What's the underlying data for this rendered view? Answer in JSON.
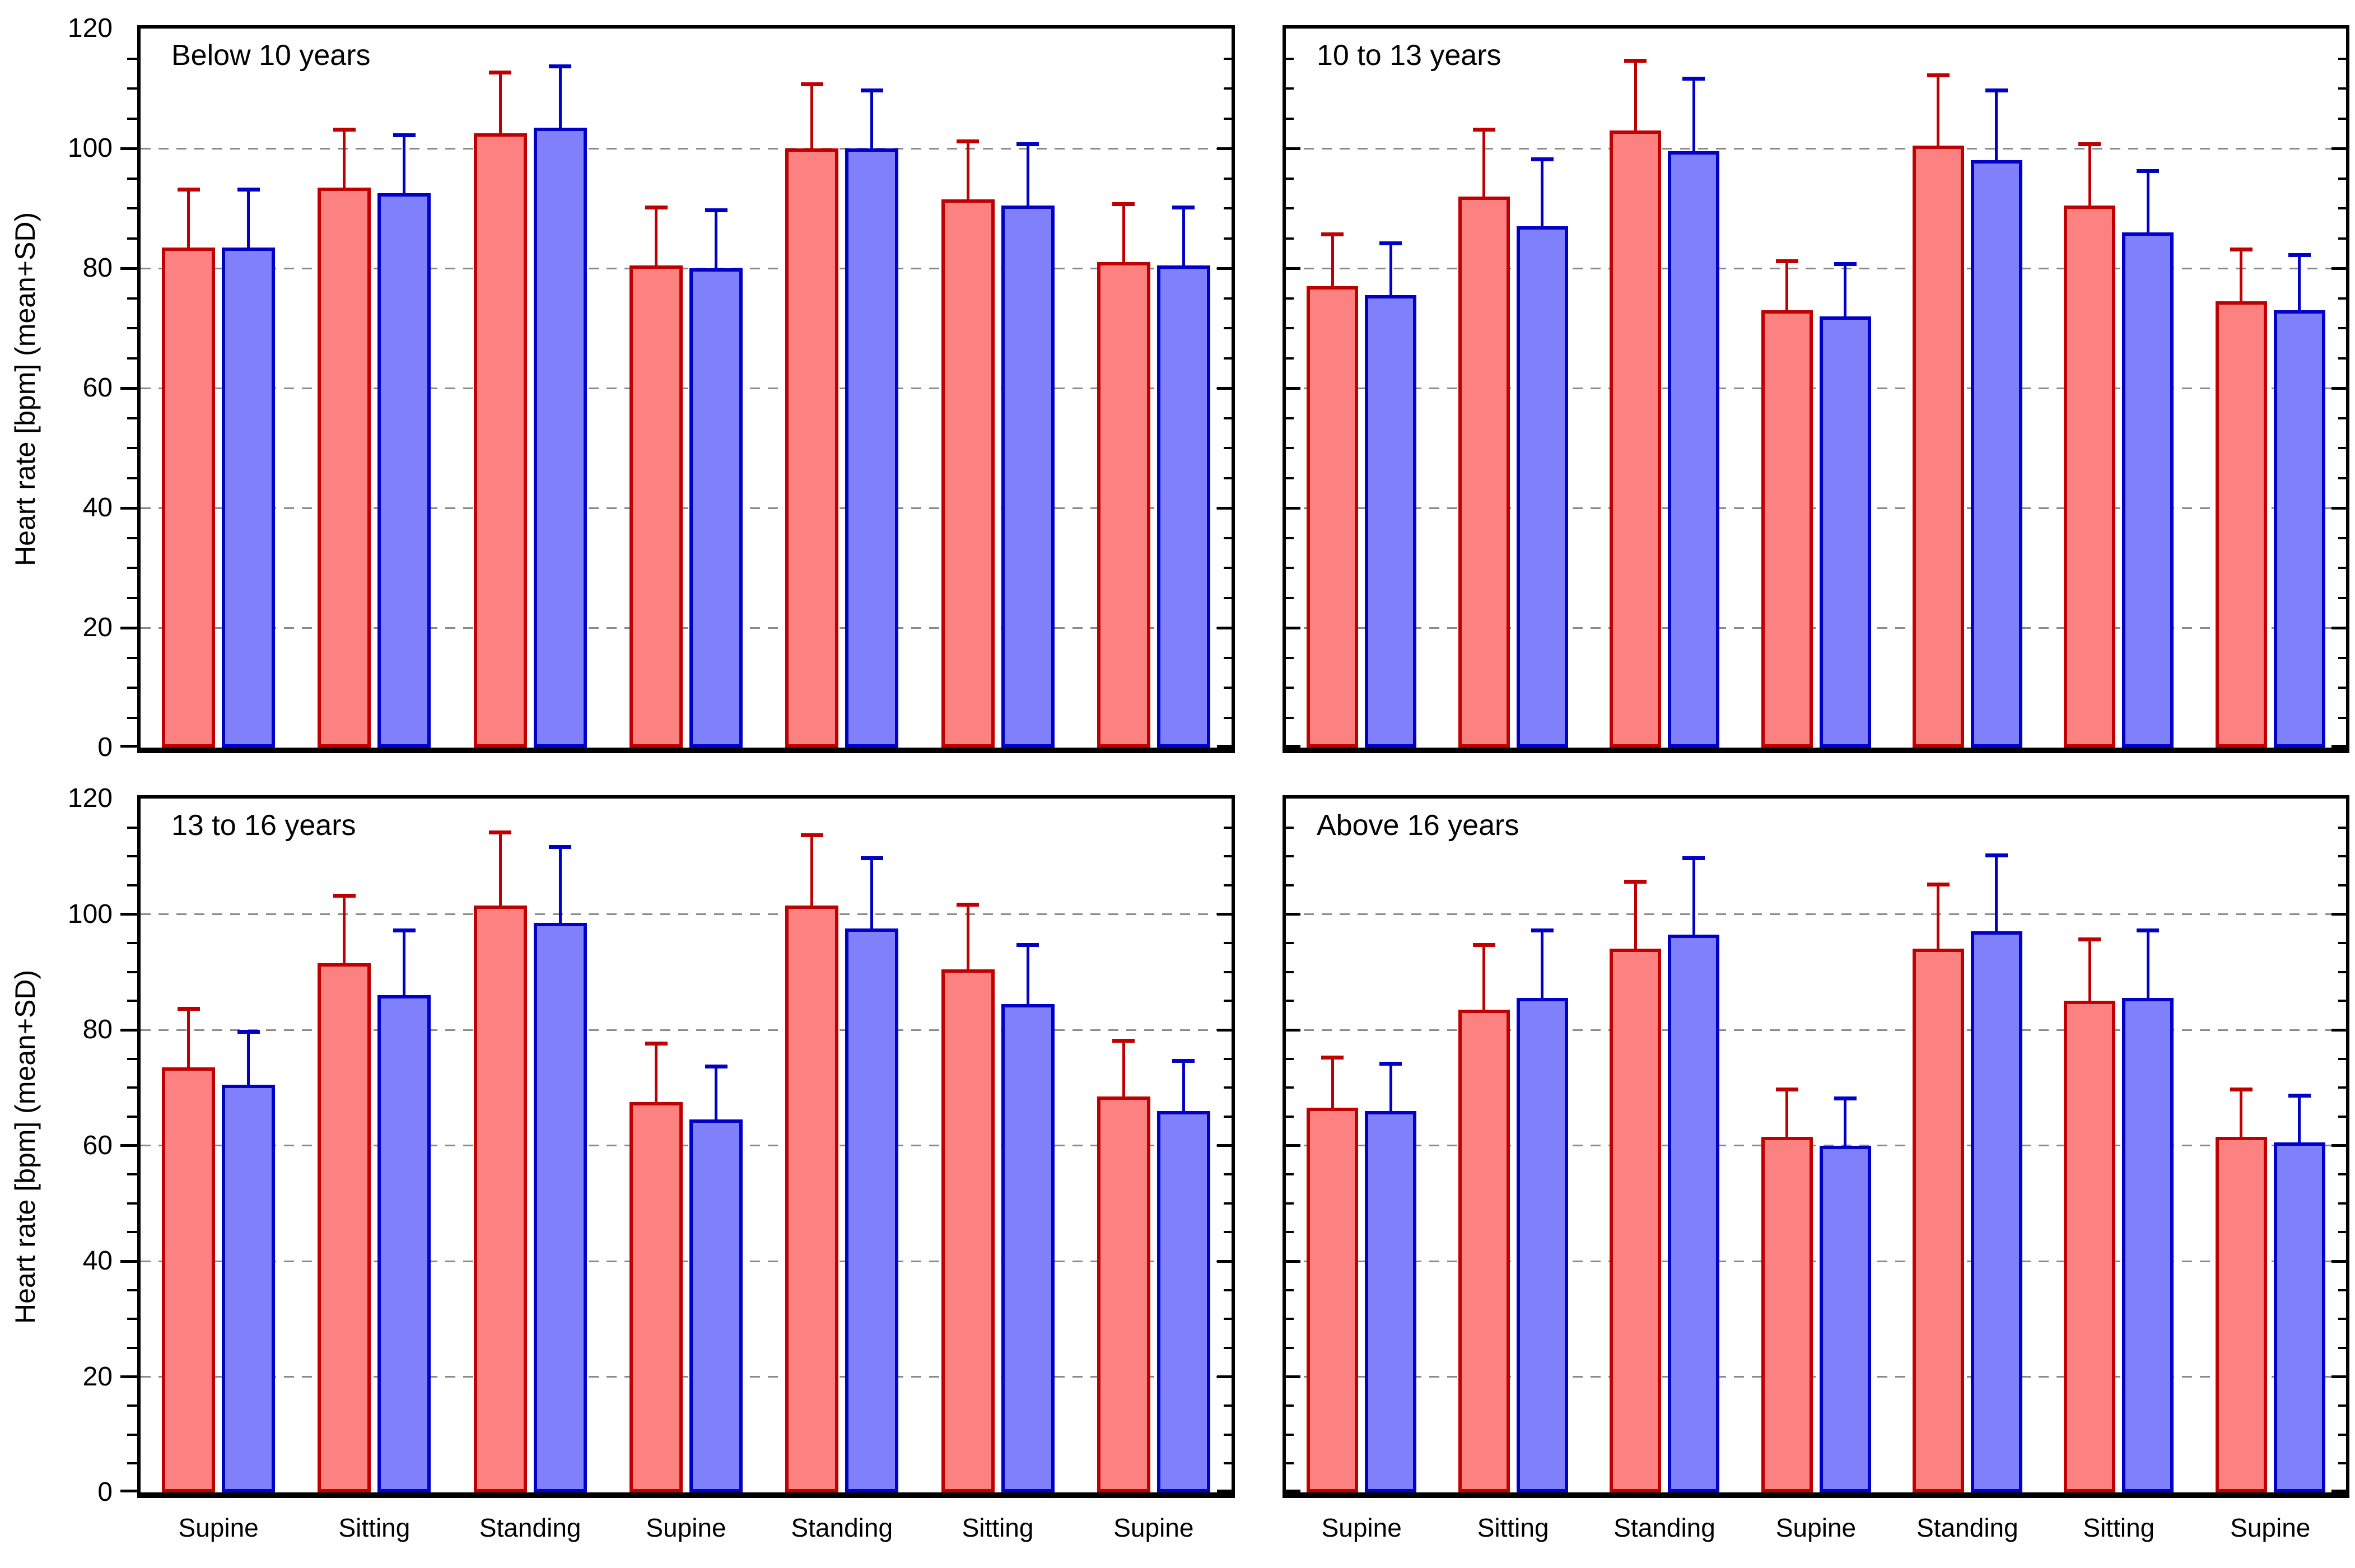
{
  "figure": {
    "ylabel": "Heart rate [bpm] (mean+SD)",
    "ytick_labels": [
      "0",
      "20",
      "40",
      "60",
      "80",
      "100",
      "120"
    ],
    "background": "#FFFFFF",
    "colors": {
      "red_fill": "#FC8181",
      "red_edge": "#C00000",
      "blue_fill": "#8080FA",
      "blue_edge": "#0000C8",
      "gridline": "#8A8A8A",
      "axis": "#000000",
      "text": "#000000"
    }
  },
  "chart_data": [
    {
      "type": "bar",
      "title": "Below 10 years",
      "panel_position": "top-left",
      "categories": [
        "Supine",
        "Sitting",
        "Standing",
        "Supine",
        "Standing",
        "Sitting",
        "Supine"
      ],
      "series": [
        {
          "name": "red",
          "fill": "#FC8181",
          "edge": "#C00000",
          "means": [
            83.5,
            93.5,
            102.5,
            80.5,
            100,
            91.5,
            81
          ],
          "sd": [
            10,
            10,
            10.5,
            10,
            11,
            10,
            10
          ]
        },
        {
          "name": "blue",
          "fill": "#8080FA",
          "edge": "#0000C8",
          "means": [
            83.5,
            92.5,
            103.5,
            80,
            100,
            90.5,
            80.5
          ],
          "sd": [
            10,
            10,
            10.5,
            10,
            10,
            10.5,
            10
          ]
        }
      ],
      "ylabel": "Heart rate [bpm] (mean+SD)",
      "ylim": [
        0,
        120
      ],
      "ytick_major_step": 20,
      "ytick_minor_step": 5,
      "grid_values": [
        20,
        40,
        60,
        80,
        100
      ],
      "grid_style": "dashed",
      "legend": "none",
      "show_y_tick_labels": true,
      "show_x_tick_labels": false
    },
    {
      "type": "bar",
      "title": "10 to 13 years",
      "panel_position": "top-right",
      "categories": [
        "Supine",
        "Sitting",
        "Standing",
        "Supine",
        "Standing",
        "Sitting",
        "Supine"
      ],
      "series": [
        {
          "name": "red",
          "fill": "#FC8181",
          "edge": "#C00000",
          "means": [
            77,
            92,
            103,
            73,
            100.5,
            90.5,
            74.5
          ],
          "sd": [
            9,
            11.5,
            12,
            8.5,
            12,
            10.5,
            9
          ]
        },
        {
          "name": "blue",
          "fill": "#8080FA",
          "edge": "#0000C8",
          "means": [
            75.5,
            87,
            99.5,
            72,
            98,
            86,
            73
          ],
          "sd": [
            9,
            11.5,
            12.5,
            9,
            12,
            10.5,
            9.5
          ]
        }
      ],
      "ylabel": "Heart rate [bpm] (mean+SD)",
      "ylim": [
        0,
        120
      ],
      "ytick_major_step": 20,
      "ytick_minor_step": 5,
      "grid_values": [
        20,
        40,
        60,
        80,
        100
      ],
      "grid_style": "dashed",
      "legend": "none",
      "show_y_tick_labels": false,
      "show_x_tick_labels": false
    },
    {
      "type": "bar",
      "title": "13 to 16 years",
      "panel_position": "bottom-left",
      "categories": [
        "Supine",
        "Sitting",
        "Standing",
        "Supine",
        "Standing",
        "Sitting",
        "Supine"
      ],
      "series": [
        {
          "name": "red",
          "fill": "#FC8181",
          "edge": "#C00000",
          "means": [
            73.5,
            91.5,
            101.5,
            67.5,
            101.5,
            90.5,
            68.5
          ],
          "sd": [
            10.5,
            12,
            13,
            10.5,
            12.5,
            11.5,
            10
          ]
        },
        {
          "name": "blue",
          "fill": "#8080FA",
          "edge": "#0000C8",
          "means": [
            70.5,
            86,
            98.5,
            64.5,
            97.5,
            84.5,
            66
          ],
          "sd": [
            9.5,
            11.5,
            13.5,
            9.5,
            12.5,
            10.5,
            9
          ]
        }
      ],
      "ylabel": "Heart rate [bpm] (mean+SD)",
      "ylim": [
        0,
        120
      ],
      "ytick_major_step": 20,
      "ytick_minor_step": 5,
      "grid_values": [
        20,
        40,
        60,
        80,
        100
      ],
      "grid_style": "dashed",
      "legend": "none",
      "show_y_tick_labels": true,
      "show_x_tick_labels": true
    },
    {
      "type": "bar",
      "title": "Above 16 years",
      "panel_position": "bottom-right",
      "categories": [
        "Supine",
        "Sitting",
        "Standing",
        "Supine",
        "Standing",
        "Sitting",
        "Supine"
      ],
      "series": [
        {
          "name": "red",
          "fill": "#FC8181",
          "edge": "#C00000",
          "means": [
            66.5,
            83.5,
            94,
            61.5,
            94,
            85,
            61.5
          ],
          "sd": [
            9,
            11.5,
            12,
            8.5,
            11.5,
            11,
            8.5
          ]
        },
        {
          "name": "blue",
          "fill": "#8080FA",
          "edge": "#0000C8",
          "means": [
            66,
            85.5,
            96.5,
            60,
            97,
            85.5,
            60.5
          ],
          "sd": [
            8.5,
            12,
            13.5,
            8.5,
            13.5,
            12,
            8.5
          ]
        }
      ],
      "ylabel": "Heart rate [bpm] (mean+SD)",
      "ylim": [
        0,
        120
      ],
      "ytick_major_step": 20,
      "ytick_minor_step": 5,
      "grid_values": [
        20,
        40,
        60,
        80,
        100
      ],
      "grid_style": "dashed",
      "legend": "none",
      "show_y_tick_labels": false,
      "show_x_tick_labels": true
    }
  ]
}
